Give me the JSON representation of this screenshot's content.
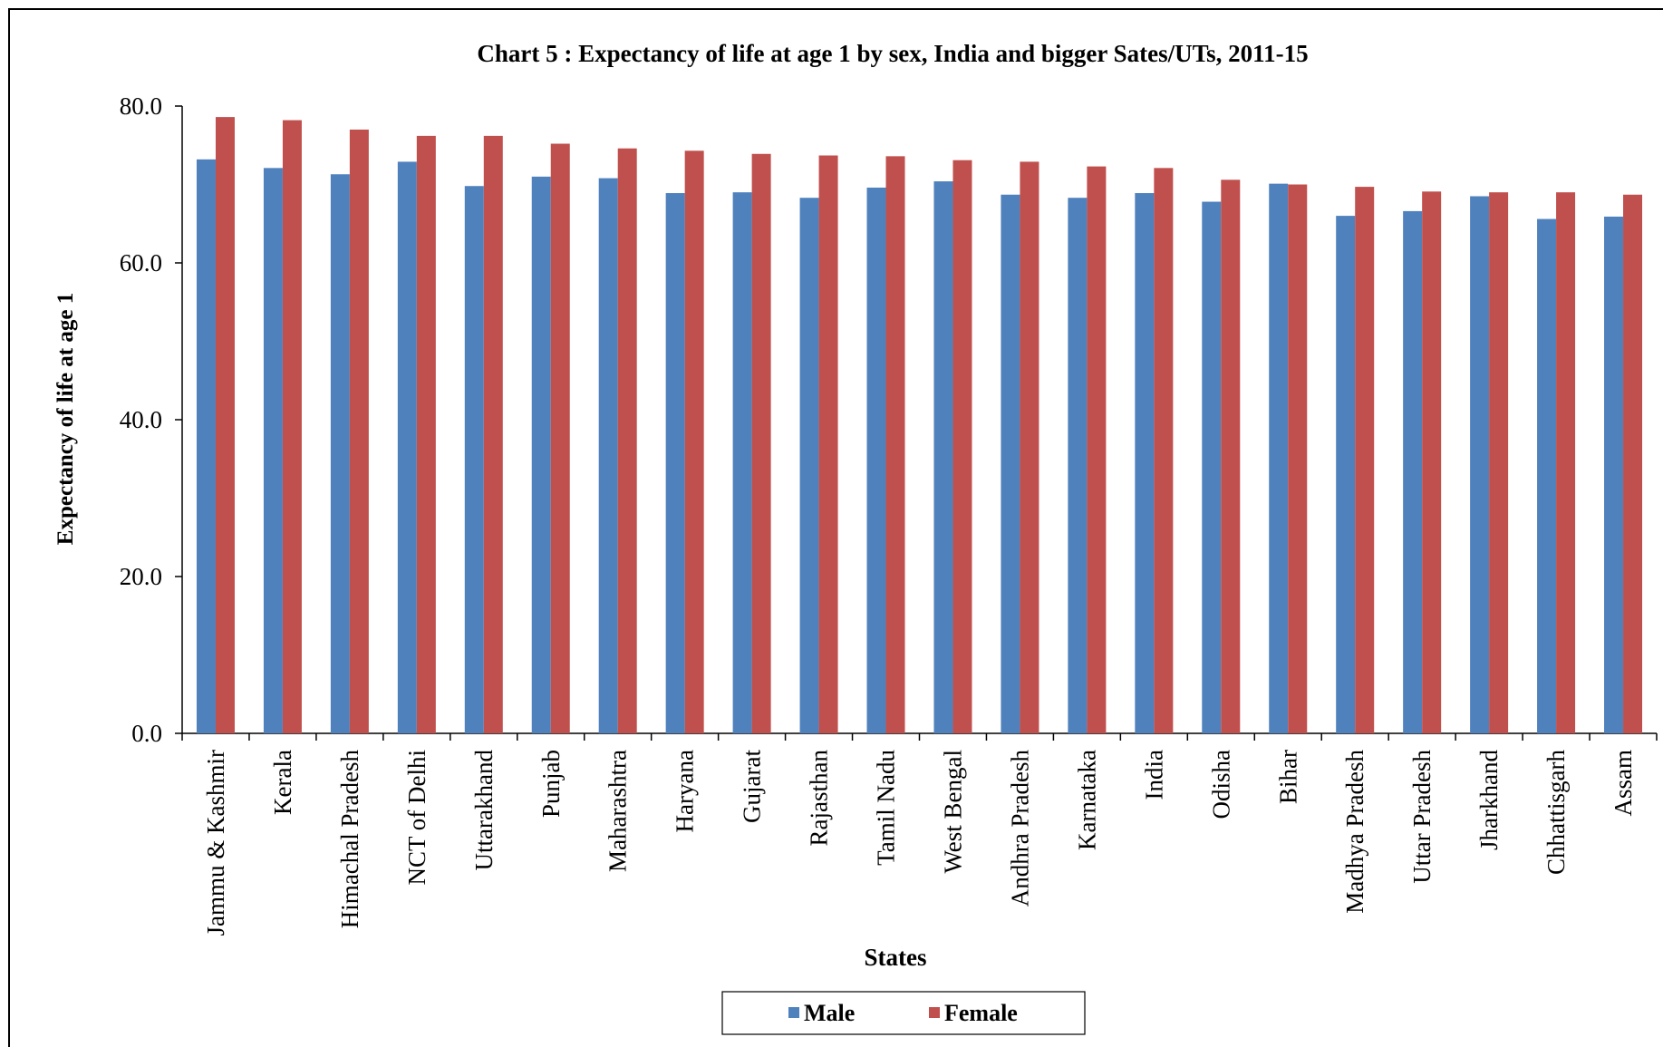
{
  "chart_data": {
    "type": "bar",
    "title": "Chart 5 : Expectancy of life at age 1 by sex, India and bigger Sates/UTs, 2011-15",
    "x_label": "States",
    "y_label": "Expectancy of life at age 1",
    "categories": [
      "Jammu & Kashmir",
      "Kerala",
      "Himachal Pradesh",
      "NCT of Delhi",
      "Uttarakhand",
      "Punjab",
      "Maharashtra",
      "Haryana",
      "Gujarat",
      "Rajasthan",
      "Tamil Nadu",
      "West Bengal",
      "Andhra Pradesh",
      "Karnataka",
      "India",
      "Odisha",
      "Bihar",
      "Madhya Pradesh",
      "Uttar Pradesh",
      "Jharkhand",
      "Chhattisgarh",
      "Assam"
    ],
    "series": [
      {
        "name": "Male",
        "color": "#4f81bd",
        "values": [
          73.2,
          72.1,
          71.3,
          72.9,
          69.8,
          71.0,
          70.8,
          68.9,
          69.0,
          68.3,
          69.6,
          70.4,
          68.7,
          68.3,
          68.9,
          67.8,
          70.1,
          66.0,
          66.6,
          68.5,
          65.6,
          65.9
        ]
      },
      {
        "name": "Female",
        "color": "#c0504d",
        "values": [
          78.6,
          78.2,
          77.0,
          76.2,
          76.2,
          75.2,
          74.6,
          74.3,
          73.9,
          73.7,
          73.6,
          73.1,
          72.9,
          72.3,
          72.1,
          70.6,
          70.0,
          69.7,
          69.1,
          69.0,
          69.0,
          68.7
        ]
      }
    ],
    "ylim": [
      0,
      80
    ],
    "yticks": [
      {
        "value": 0,
        "label": "0.0"
      },
      {
        "value": 20,
        "label": "20.0"
      },
      {
        "value": 40,
        "label": "40.0"
      },
      {
        "value": 60,
        "label": "60.0"
      },
      {
        "value": 80,
        "label": "80.0"
      }
    ],
    "grid": false,
    "legend": "bottom"
  }
}
